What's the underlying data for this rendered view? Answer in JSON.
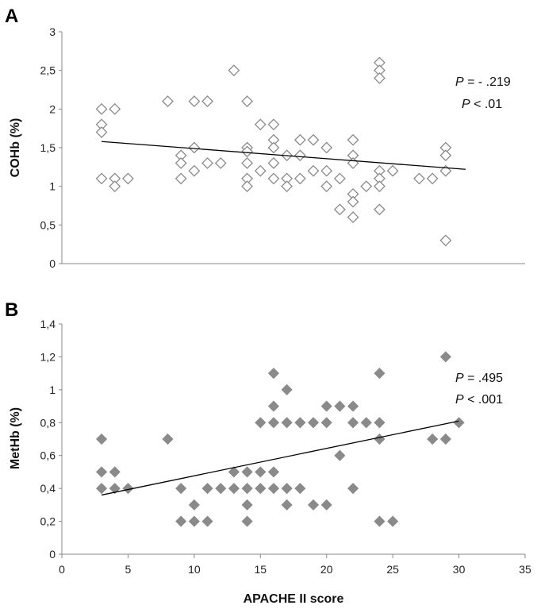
{
  "chart_data": [
    {
      "type": "scatter",
      "panel_label": "A",
      "title": "",
      "xlabel": "",
      "ylabel": "COHb (%)",
      "xlim": [
        0,
        35
      ],
      "ylim": [
        0,
        3
      ],
      "x_ticks": [],
      "y_ticks": [
        "0",
        "0,5",
        "1",
        "1,5",
        "2",
        "2,5",
        "3"
      ],
      "marker": "diamond-open",
      "marker_color": "#8a8a8a",
      "grid": false,
      "annotation": {
        "line1_italic": "P",
        "line1_rest": " = - .219",
        "line2_italic": "P",
        "line2_rest": " < .01"
      },
      "trendline": {
        "x": [
          3,
          30.5
        ],
        "y": [
          1.58,
          1.22
        ]
      },
      "points": [
        [
          3,
          2.0
        ],
        [
          3,
          1.8
        ],
        [
          3,
          1.7
        ],
        [
          3,
          1.1
        ],
        [
          4,
          2.0
        ],
        [
          4,
          1.1
        ],
        [
          4,
          1.0
        ],
        [
          5,
          1.1
        ],
        [
          8,
          2.1
        ],
        [
          9,
          1.4
        ],
        [
          9,
          1.3
        ],
        [
          9,
          1.1
        ],
        [
          10,
          2.1
        ],
        [
          10,
          1.5
        ],
        [
          10,
          1.2
        ],
        [
          11,
          2.1
        ],
        [
          11,
          1.3
        ],
        [
          12,
          1.3
        ],
        [
          13,
          2.5
        ],
        [
          14,
          2.1
        ],
        [
          14,
          1.5
        ],
        [
          14,
          1.45
        ],
        [
          14,
          1.3
        ],
        [
          14,
          1.1
        ],
        [
          14,
          1.0
        ],
        [
          15,
          1.8
        ],
        [
          15,
          1.2
        ],
        [
          16,
          1.8
        ],
        [
          16,
          1.6
        ],
        [
          16,
          1.5
        ],
        [
          16,
          1.3
        ],
        [
          16,
          1.1
        ],
        [
          17,
          1.4
        ],
        [
          17,
          1.1
        ],
        [
          17,
          1.0
        ],
        [
          18,
          1.6
        ],
        [
          18,
          1.4
        ],
        [
          18,
          1.1
        ],
        [
          19,
          1.6
        ],
        [
          19,
          1.2
        ],
        [
          20,
          1.5
        ],
        [
          20,
          1.2
        ],
        [
          20,
          1.0
        ],
        [
          21,
          1.1
        ],
        [
          21,
          0.7
        ],
        [
          22,
          1.6
        ],
        [
          22,
          1.4
        ],
        [
          22,
          1.3
        ],
        [
          22,
          0.9
        ],
        [
          22,
          0.8
        ],
        [
          22,
          0.6
        ],
        [
          23,
          1.0
        ],
        [
          24,
          2.6
        ],
        [
          24,
          2.5
        ],
        [
          24,
          2.4
        ],
        [
          24,
          1.2
        ],
        [
          24,
          1.1
        ],
        [
          24,
          1.0
        ],
        [
          24,
          0.7
        ],
        [
          25,
          1.2
        ],
        [
          27,
          1.1
        ],
        [
          28,
          1.1
        ],
        [
          29,
          1.5
        ],
        [
          29,
          1.4
        ],
        [
          29,
          1.2
        ],
        [
          29,
          0.3
        ]
      ]
    },
    {
      "type": "scatter",
      "panel_label": "B",
      "title": "",
      "xlabel": "APACHE II score",
      "ylabel": "MetHb (%)",
      "xlim": [
        0,
        35
      ],
      "ylim": [
        0,
        1.4
      ],
      "x_ticks": [
        "0",
        "5",
        "10",
        "15",
        "20",
        "25",
        "30",
        "35"
      ],
      "y_ticks": [
        "0",
        "0,2",
        "0,4",
        "0,6",
        "0,8",
        "1",
        "1,2",
        "1,4"
      ],
      "marker": "diamond-filled",
      "marker_color": "#8a8a8a",
      "grid": false,
      "annotation": {
        "line1_italic": "P",
        "line1_rest": " = .495",
        "line2_italic": "P",
        "line2_rest": " < .001"
      },
      "trendline": {
        "x": [
          3,
          30
        ],
        "y": [
          0.36,
          0.81
        ]
      },
      "points": [
        [
          3,
          0.7
        ],
        [
          3,
          0.5
        ],
        [
          3,
          0.4
        ],
        [
          4,
          0.5
        ],
        [
          4,
          0.4
        ],
        [
          5,
          0.4
        ],
        [
          8,
          0.7
        ],
        [
          9,
          0.4
        ],
        [
          9,
          0.2
        ],
        [
          10,
          0.3
        ],
        [
          10,
          0.2
        ],
        [
          11,
          0.4
        ],
        [
          11,
          0.2
        ],
        [
          12,
          0.4
        ],
        [
          13,
          0.5
        ],
        [
          13,
          0.4
        ],
        [
          14,
          0.5
        ],
        [
          14,
          0.4
        ],
        [
          14,
          0.3
        ],
        [
          14,
          0.2
        ],
        [
          15,
          0.8
        ],
        [
          15,
          0.5
        ],
        [
          15,
          0.4
        ],
        [
          16,
          1.1
        ],
        [
          16,
          0.9
        ],
        [
          16,
          0.8
        ],
        [
          16,
          0.5
        ],
        [
          16,
          0.4
        ],
        [
          17,
          1.0
        ],
        [
          17,
          0.8
        ],
        [
          17,
          0.4
        ],
        [
          17,
          0.3
        ],
        [
          18,
          0.8
        ],
        [
          18,
          0.4
        ],
        [
          19,
          0.8
        ],
        [
          19,
          0.3
        ],
        [
          20,
          0.9
        ],
        [
          20,
          0.8
        ],
        [
          20,
          0.3
        ],
        [
          21,
          0.9
        ],
        [
          21,
          0.6
        ],
        [
          22,
          0.9
        ],
        [
          22,
          0.8
        ],
        [
          22,
          0.4
        ],
        [
          23,
          0.8
        ],
        [
          24,
          1.1
        ],
        [
          24,
          0.8
        ],
        [
          24,
          0.7
        ],
        [
          24,
          0.2
        ],
        [
          25,
          0.2
        ],
        [
          28,
          0.7
        ],
        [
          29,
          1.2
        ],
        [
          29,
          0.7
        ],
        [
          30,
          0.8
        ]
      ]
    }
  ]
}
